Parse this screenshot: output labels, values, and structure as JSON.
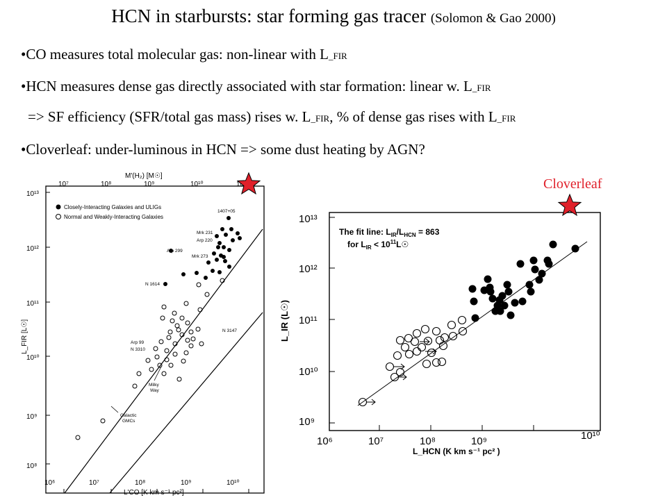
{
  "slide": {
    "title_main": "HCN in starbursts:  star forming gas tracer",
    "title_cite": "(Solomon & Gao 2000)",
    "bullets": {
      "b1_text": "•CO measures total molecular gas: non-linear with L",
      "b1_sub": "_FIR",
      "b2_text": "•HCN measures dense gas directly associated with star formation: linear w. L",
      "b2_sub": "_FIR",
      "b3_a": "=> SF efficiency (SFR/total gas mass) rises w. L",
      "b3_sub1": "_FIR",
      "b3_b": ",  % of dense gas rises with L",
      "b3_sub2": "_FIR",
      "b4_text": "•Cloverleaf: under-luminous in HCN => some dust heating by AGN?"
    },
    "cloverleaf_label": "Cloverleaf",
    "star_color": "#e0202a"
  },
  "left_plot": {
    "top_axis_label": "M'(H₂)  [M☉]",
    "top_ticks": [
      "10⁷",
      "10⁸",
      "10⁹",
      "10¹⁰",
      "10¹¹"
    ],
    "y_label": "L_FIR [L☉]",
    "y_ticks": [
      "10⁸",
      "10⁹",
      "10¹⁰",
      "10¹¹",
      "10¹²",
      "10¹³"
    ],
    "x_label": "L'CO  [K km s⁻¹ pc²]",
    "x_ticks": [
      "10⁶",
      "10⁷",
      "10⁸",
      "10⁹",
      "10¹⁰"
    ],
    "legend_filled": "Closely-Interacting Galaxies and ULIGs",
    "legend_open": "Normal and Weakly-Interacting Galaxies",
    "annotations": [
      "1407+05",
      "Mrk 231",
      "Arp 220",
      "Arp 299",
      "Mrk 273",
      "N 1614",
      "N 3147",
      "Arp 99",
      "N 3310",
      "Milky",
      "Way",
      "Galactic",
      "GMCs"
    ]
  },
  "right_plot": {
    "fit_text_1": "The fit line:  L",
    "fit_text_1_sub": "IR",
    "fit_text_1_mid": "/L",
    "fit_text_1_sub2": "HCN",
    "fit_text_1_end": " = 863",
    "fit_text_2": "for L",
    "fit_text_2_sub": "IR",
    "fit_text_2_end": " < 10",
    "fit_text_2_exp": "11",
    "fit_text_2_unit": "L☉",
    "y_label": "L_IR   (L☉)",
    "y_ticks": [
      "10⁹",
      "10¹⁰",
      "10¹¹",
      "10¹²",
      "10¹³"
    ],
    "x_ticks": [
      "10⁶",
      "10⁷",
      "10⁸",
      "10⁹",
      "10¹⁰"
    ],
    "x_label": "L_HCN   (K km s⁻¹ pc² )"
  }
}
